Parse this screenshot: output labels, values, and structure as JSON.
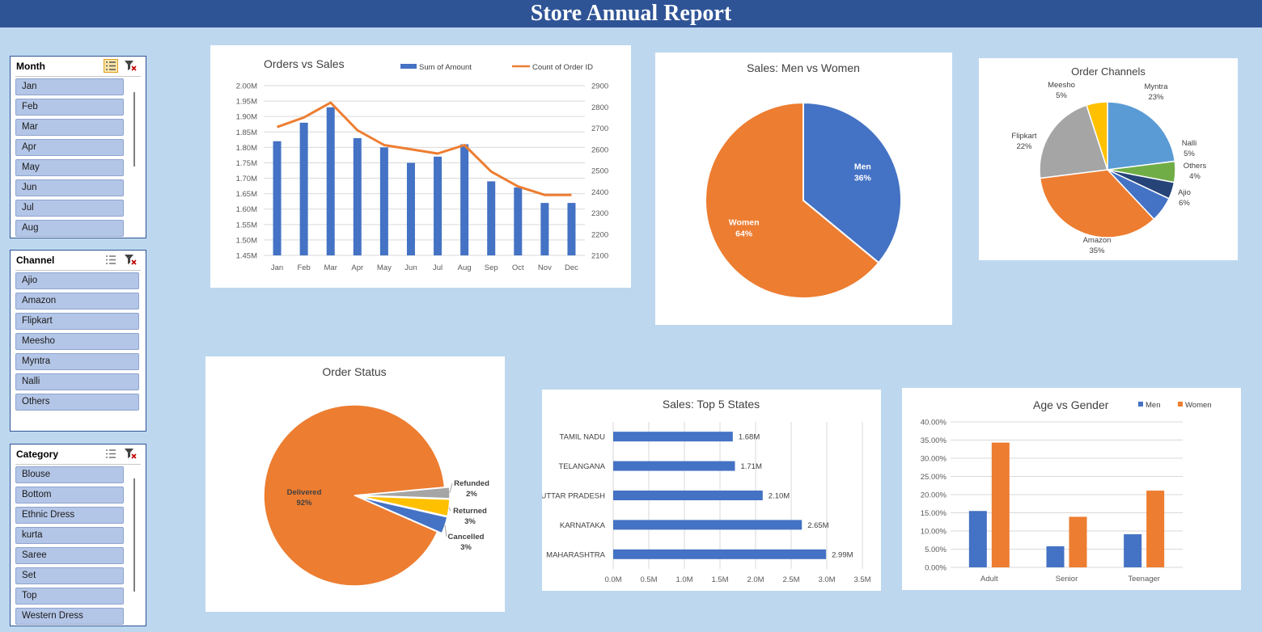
{
  "report_title": "Store Annual Report",
  "colors": {
    "blue": "#4472c4",
    "orange": "#ed7d31",
    "gray": "#a5a5a5",
    "yellow": "#ffc000",
    "lightblue": "#5b9bd5",
    "green": "#70ad47",
    "navy": "#264478"
  },
  "slicers": {
    "month": {
      "title": "Month",
      "items": [
        "Jan",
        "Feb",
        "Mar",
        "Apr",
        "May",
        "Jun",
        "Jul",
        "Aug"
      ]
    },
    "channel": {
      "title": "Channel",
      "items": [
        "Ajio",
        "Amazon",
        "Flipkart",
        "Meesho",
        "Myntra",
        "Nalli",
        "Others"
      ]
    },
    "category": {
      "title": "Category",
      "items": [
        "Blouse",
        "Bottom",
        "Ethnic Dress",
        "kurta",
        "Saree",
        "Set",
        "Top",
        "Western Dress"
      ]
    }
  },
  "chart_data": [
    {
      "id": "orders_vs_sales",
      "type": "bar",
      "title": "Orders vs Sales",
      "categories": [
        "Jan",
        "Feb",
        "Mar",
        "Apr",
        "May",
        "Jun",
        "Jul",
        "Aug",
        "Sep",
        "Oct",
        "Nov",
        "Dec"
      ],
      "series": [
        {
          "name": "Sum of Amount",
          "type": "bar",
          "axis": "left",
          "values": [
            1.82,
            1.88,
            1.93,
            1.83,
            1.8,
            1.75,
            1.77,
            1.81,
            1.69,
            1.67,
            1.62,
            1.62
          ]
        },
        {
          "name": "Count of Order ID",
          "type": "line",
          "axis": "right",
          "values": [
            2705,
            2750,
            2820,
            2690,
            2620,
            2600,
            2580,
            2620,
            2495,
            2425,
            2385,
            2385
          ]
        }
      ],
      "left_axis": {
        "min": 1.45,
        "max": 2.0,
        "ticks": [
          "1.45M",
          "1.50M",
          "1.55M",
          "1.60M",
          "1.65M",
          "1.70M",
          "1.75M",
          "1.80M",
          "1.85M",
          "1.90M",
          "1.95M",
          "2.00M"
        ]
      },
      "right_axis": {
        "min": 2100,
        "max": 2900,
        "ticks": [
          "2100",
          "2200",
          "2300",
          "2400",
          "2500",
          "2600",
          "2700",
          "2800",
          "2900"
        ]
      },
      "legend": "top"
    },
    {
      "id": "men_vs_women",
      "type": "pie",
      "title": "Sales: Men vs Women",
      "slices": [
        {
          "label": "Men",
          "pct_label": "36%",
          "value": 36
        },
        {
          "label": "Women",
          "pct_label": "64%",
          "value": 64
        }
      ]
    },
    {
      "id": "order_channels",
      "type": "pie",
      "title": "Order Channels",
      "slices": [
        {
          "label": "Myntra",
          "pct_label": "23%",
          "value": 23
        },
        {
          "label": "Nalli",
          "pct_label": "5%",
          "value": 5
        },
        {
          "label": "Others",
          "pct_label": "4%",
          "value": 4
        },
        {
          "label": "Ajio",
          "pct_label": "6%",
          "value": 6
        },
        {
          "label": "Amazon",
          "pct_label": "35%",
          "value": 35
        },
        {
          "label": "Flipkart",
          "pct_label": "22%",
          "value": 22
        },
        {
          "label": "Meesho",
          "pct_label": "5%",
          "value": 5
        }
      ]
    },
    {
      "id": "order_status",
      "type": "pie",
      "title": "Order Status",
      "slices": [
        {
          "label": "Refunded",
          "pct_label": "2%",
          "value": 2
        },
        {
          "label": "Returned",
          "pct_label": "3%",
          "value": 3
        },
        {
          "label": "Cancelled",
          "pct_label": "3%",
          "value": 3
        },
        {
          "label": "Delivered",
          "pct_label": "92%",
          "value": 92
        }
      ]
    },
    {
      "id": "top_states",
      "type": "bar",
      "orientation": "horizontal",
      "title": "Sales: Top 5 States",
      "categories": [
        "TAMIL NADU",
        "TELANGANA",
        "UTTAR PRADESH",
        "KARNATAKA",
        "MAHARASHTRA"
      ],
      "values": [
        1.68,
        1.71,
        2.1,
        2.65,
        2.99
      ],
      "data_labels": [
        "1.68M",
        "1.71M",
        "2.10M",
        "2.65M",
        "2.99M"
      ],
      "xlim": [
        0,
        3.5
      ],
      "ticks": [
        "0.0M",
        "0.5M",
        "1.0M",
        "1.5M",
        "2.0M",
        "2.5M",
        "3.0M",
        "3.5M"
      ]
    },
    {
      "id": "age_vs_gender",
      "type": "bar",
      "title": "Age vs Gender",
      "categories": [
        "Adult",
        "Senior",
        "Teenager"
      ],
      "series": [
        {
          "name": "Men",
          "values": [
            15.5,
            5.8,
            9.1
          ]
        },
        {
          "name": "Women",
          "values": [
            34.3,
            13.9,
            21.1
          ]
        }
      ],
      "ylim": [
        0,
        40
      ],
      "ticks": [
        "0.00%",
        "5.00%",
        "10.00%",
        "15.00%",
        "20.00%",
        "25.00%",
        "30.00%",
        "35.00%",
        "40.00%"
      ],
      "legend": "top-right"
    }
  ]
}
